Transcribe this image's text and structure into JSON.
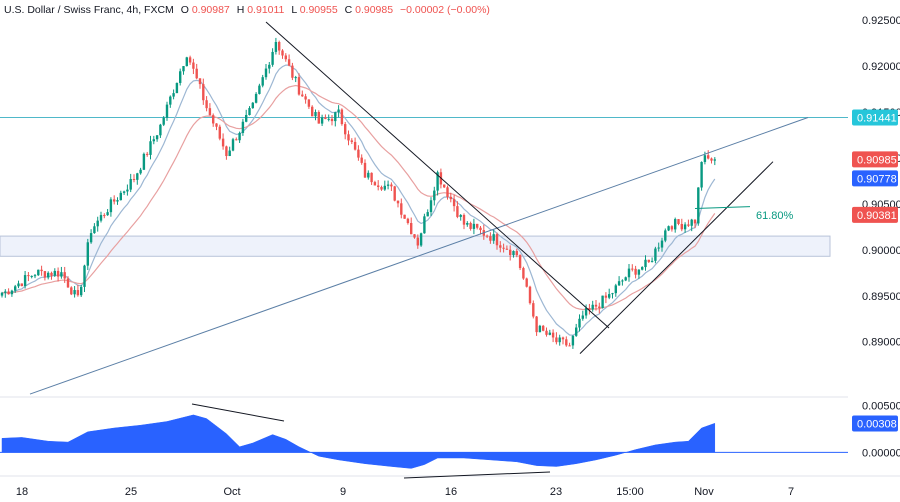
{
  "header": {
    "symbol": "U.S. Dollar / Swiss Franc, 4h, FXCM",
    "o_label": "O",
    "o_value": "0.90987",
    "h_label": "H",
    "h_value": "0.91011",
    "l_label": "L",
    "l_value": "0.90955",
    "c_label": "C",
    "c_value": "0.90985",
    "change": "−0.00002 (−0.00%)"
  },
  "colors": {
    "up": "#089981",
    "down": "#ef5350",
    "ema_fast": "#9db7d3",
    "ema_slow": "#e8a0a0",
    "horizontal_line": "#4fb8c9",
    "trendline": "#5b7fa6",
    "zone_fill": "#eef2fb",
    "histogram": "#2962ff",
    "fib": "#089981"
  },
  "chart_data": {
    "type": "candlestick",
    "price_axis": {
      "ylim": [
        0.8842,
        0.9272
      ],
      "ticks": [
        "0.92500",
        "0.92000",
        "0.91500",
        "0.91000",
        "0.90500",
        "0.90000",
        "0.89500",
        "0.89000"
      ],
      "tick_values": [
        0.925,
        0.92,
        0.915,
        0.91,
        0.905,
        0.9,
        0.895,
        0.89
      ]
    },
    "time_axis": {
      "labels": [
        "18",
        "25",
        "Oct",
        "9",
        "16",
        "23",
        "15:00",
        "Nov",
        "7"
      ]
    },
    "price_badges": [
      {
        "label": "0.91441",
        "value": 0.91441,
        "color": "#26c6da"
      },
      {
        "label": "0.90985",
        "value": 0.90985,
        "color": "#ef5350"
      },
      {
        "label": "0.90778",
        "value": 0.90778,
        "color": "#2962ff"
      },
      {
        "label": "0.90381",
        "value": 0.90381,
        "color": "#ef5350"
      }
    ],
    "horizontal_level": 0.91441,
    "support_zone": [
      0.8993,
      0.9015
    ],
    "fib_label": "61.80%",
    "fib_level": 0.9047,
    "anchors": [
      {
        "x": 1,
        "close": 0.8954
      },
      {
        "x": 10,
        "close": 0.8975
      },
      {
        "x": 18,
        "close": 0.8975
      },
      {
        "x": 23,
        "close": 0.8945
      },
      {
        "x": 27,
        "close": 0.9022
      },
      {
        "x": 32,
        "close": 0.9045
      },
      {
        "x": 40,
        "close": 0.9078
      },
      {
        "x": 48,
        "close": 0.9135
      },
      {
        "x": 56,
        "close": 0.9215
      },
      {
        "x": 62,
        "close": 0.9155
      },
      {
        "x": 68,
        "close": 0.9105
      },
      {
        "x": 76,
        "close": 0.9155
      },
      {
        "x": 83,
        "close": 0.9228
      },
      {
        "x": 90,
        "close": 0.9175
      },
      {
        "x": 96,
        "close": 0.9138
      },
      {
        "x": 102,
        "close": 0.9148
      },
      {
        "x": 110,
        "close": 0.9082
      },
      {
        "x": 118,
        "close": 0.9065
      },
      {
        "x": 126,
        "close": 0.9008
      },
      {
        "x": 132,
        "close": 0.9083
      },
      {
        "x": 140,
        "close": 0.9028
      },
      {
        "x": 148,
        "close": 0.9015
      },
      {
        "x": 156,
        "close": 0.8995
      },
      {
        "x": 162,
        "close": 0.8915
      },
      {
        "x": 168,
        "close": 0.89
      },
      {
        "x": 172,
        "close": 0.8896
      },
      {
        "x": 176,
        "close": 0.8928
      },
      {
        "x": 184,
        "close": 0.895
      },
      {
        "x": 190,
        "close": 0.8975
      },
      {
        "x": 196,
        "close": 0.8985
      },
      {
        "x": 202,
        "close": 0.9028
      },
      {
        "x": 206,
        "close": 0.9028
      },
      {
        "x": 210,
        "close": 0.9032
      },
      {
        "x": 212,
        "close": 0.9098
      },
      {
        "x": 216,
        "close": 0.90985
      }
    ],
    "oscillator": {
      "ticks": [
        "0.00500",
        "0.00000"
      ],
      "tick_values": [
        0.005,
        0.0
      ],
      "ylim": [
        -0.0023,
        0.0058
      ],
      "badge": {
        "label": "0.00308",
        "value": 0.00308,
        "color": "#2962ff"
      },
      "points": [
        [
          0,
          0.0015
        ],
        [
          6,
          0.0016
        ],
        [
          14,
          0.0012
        ],
        [
          20,
          0.0011
        ],
        [
          26,
          0.0022
        ],
        [
          34,
          0.0026
        ],
        [
          42,
          0.0029
        ],
        [
          50,
          0.0033
        ],
        [
          58,
          0.004
        ],
        [
          62,
          0.0036
        ],
        [
          68,
          0.002
        ],
        [
          72,
          0.0006
        ],
        [
          76,
          0.001
        ],
        [
          82,
          0.0019
        ],
        [
          86,
          0.0014
        ],
        [
          90,
          0.0006
        ],
        [
          96,
          -0.0004
        ],
        [
          102,
          -0.0008
        ],
        [
          110,
          -0.0012
        ],
        [
          118,
          -0.0015
        ],
        [
          124,
          -0.0017
        ],
        [
          128,
          -0.0013
        ],
        [
          132,
          -0.0006
        ],
        [
          140,
          -0.0006
        ],
        [
          148,
          -0.0008
        ],
        [
          156,
          -0.001
        ],
        [
          162,
          -0.0014
        ],
        [
          168,
          -0.0015
        ],
        [
          174,
          -0.0012
        ],
        [
          180,
          -0.0008
        ],
        [
          186,
          -0.0003
        ],
        [
          192,
          0.0003
        ],
        [
          198,
          0.0008
        ],
        [
          204,
          0.0011
        ],
        [
          208,
          0.0012
        ],
        [
          212,
          0.0026
        ],
        [
          216,
          0.0031
        ]
      ]
    }
  }
}
